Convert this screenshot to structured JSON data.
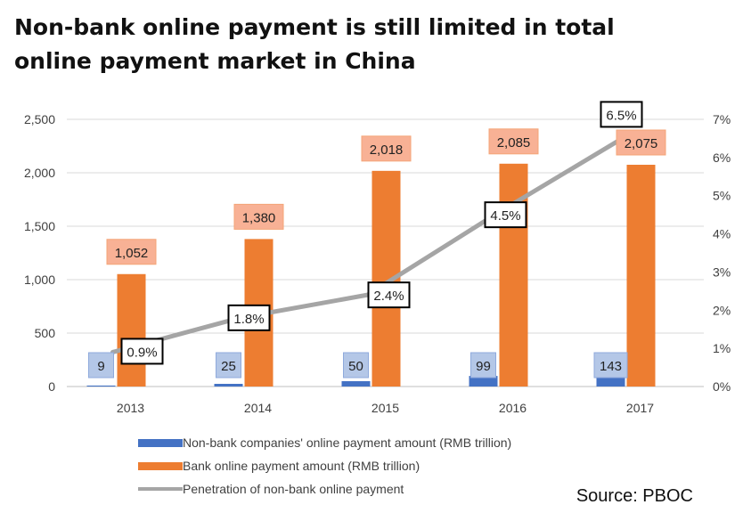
{
  "title_lines": [
    "Non-bank online payment is still limited in total",
    "online payment market in China"
  ],
  "source": "Source: PBOC",
  "colors": {
    "nonbank_bar": "#4472c4",
    "bank_bar": "#ed7d31",
    "penetration_line": "#a5a5a5",
    "nonbank_label_bg": "#b4c7e7",
    "bank_label_bg": "#f8b195",
    "axis_text": "#404040",
    "grid": "#d9d9d9"
  },
  "chart_data": {
    "type": "bar",
    "categories": [
      "2013",
      "2014",
      "2015",
      "2016",
      "2017"
    ],
    "series": [
      {
        "name": "Non-bank companies' online payment amount (RMB trillion)",
        "kind": "bar",
        "axis": "left",
        "values": [
          9,
          25,
          50,
          99,
          143
        ],
        "labels": [
          "9",
          "25",
          "50",
          "99",
          "143"
        ]
      },
      {
        "name": "Bank online payment amount (RMB trillion)",
        "kind": "bar",
        "axis": "left",
        "values": [
          1052,
          1380,
          2018,
          2085,
          2075
        ],
        "labels": [
          "1,052",
          "1,380",
          "2,018",
          "2,085",
          "2,075"
        ]
      },
      {
        "name": "Penetration of non-bank online payment",
        "kind": "line",
        "axis": "right",
        "values": [
          0.9,
          1.8,
          2.4,
          4.5,
          6.5
        ],
        "labels": [
          "0.9%",
          "1.8%",
          "2.4%",
          "4.5%",
          "6.5%"
        ]
      }
    ],
    "left_axis": {
      "ylim": [
        0,
        2500
      ],
      "ticks": [
        0,
        500,
        1000,
        1500,
        2000,
        2500
      ],
      "tick_labels": [
        "0",
        "500",
        "1,000",
        "1,500",
        "2,000",
        "2,500"
      ]
    },
    "right_axis": {
      "ylim": [
        0,
        7
      ],
      "ticks": [
        0,
        1,
        2,
        3,
        4,
        5,
        6,
        7
      ],
      "tick_labels": [
        "0%",
        "1%",
        "2%",
        "3%",
        "4%",
        "5%",
        "6%",
        "7%"
      ]
    },
    "legend_position": "bottom"
  }
}
